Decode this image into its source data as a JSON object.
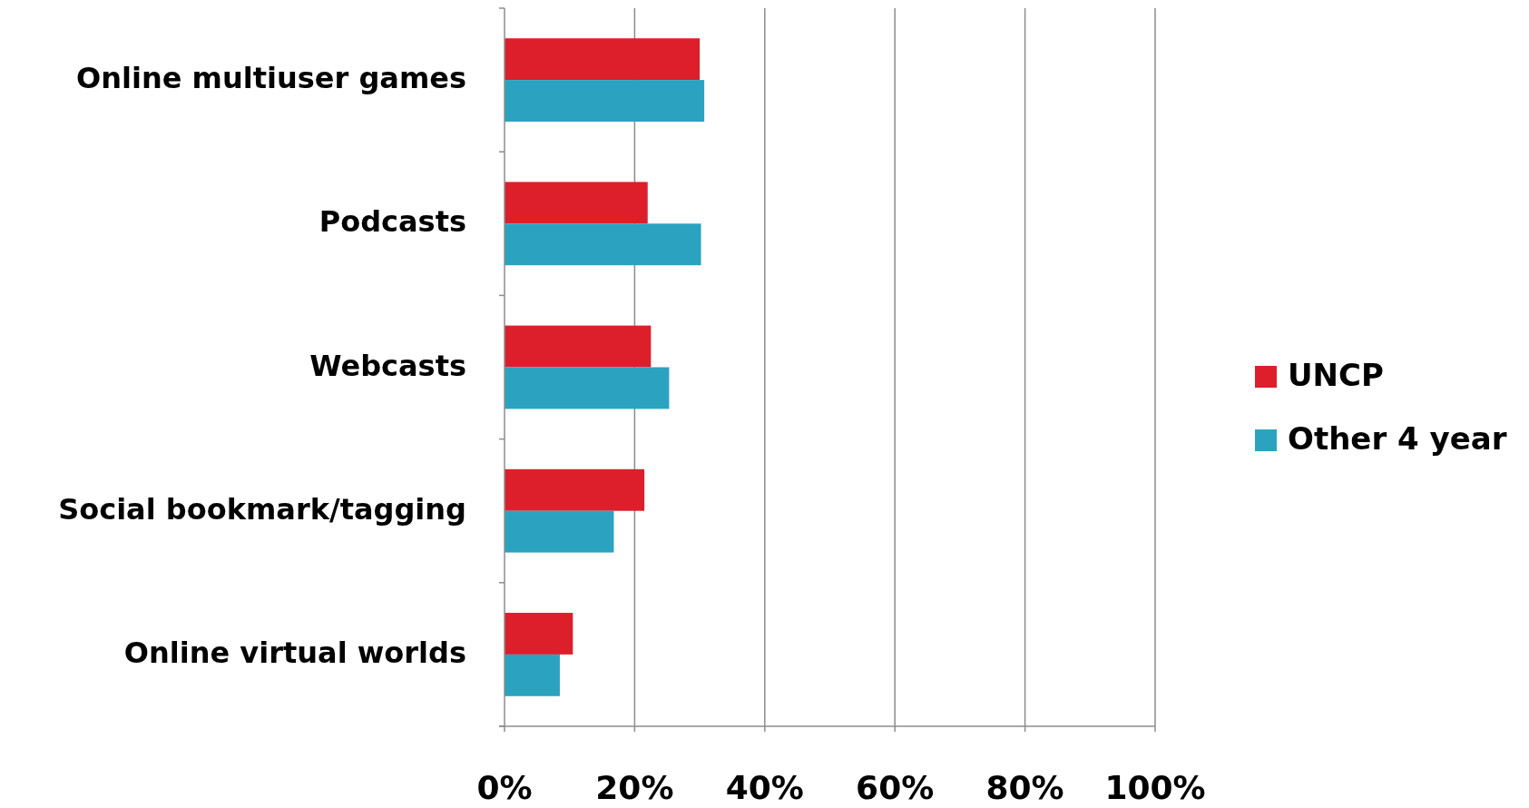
{
  "chart_data": {
    "type": "bar",
    "orientation": "horizontal",
    "categories": [
      "Online multiuser games",
      "Podcasts",
      "Webcasts",
      "Social bookmark/tagging",
      "Online virtual worlds"
    ],
    "series": [
      {
        "name": "UNCP",
        "color": "#dc1f2b",
        "values": [
          30,
          22,
          22.5,
          21.5,
          10.5
        ]
      },
      {
        "name": "Other 4 year",
        "color": "#2ba3c0",
        "values": [
          30.7,
          30.2,
          25.3,
          16.8,
          8.5
        ]
      }
    ],
    "xlim": [
      0,
      100
    ],
    "xticks": [
      {
        "value": 0,
        "label": "0%"
      },
      {
        "value": 20,
        "label": "20%"
      },
      {
        "value": 40,
        "label": "40%"
      },
      {
        "value": 60,
        "label": "60%"
      },
      {
        "value": 80,
        "label": "80%"
      },
      {
        "value": 100,
        "label": "100%"
      }
    ],
    "grid": "x",
    "legend": "right"
  }
}
